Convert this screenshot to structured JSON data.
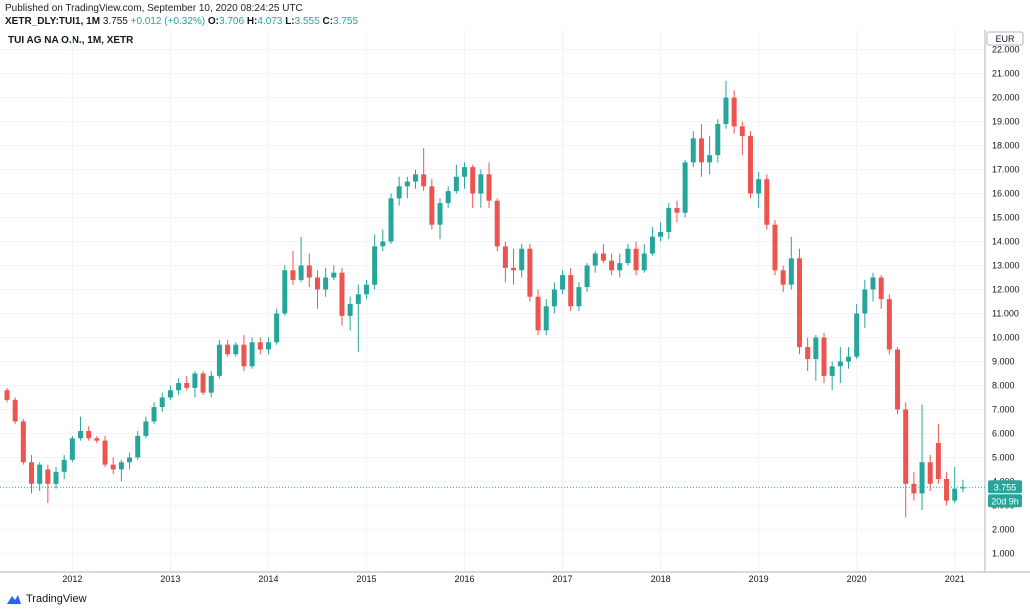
{
  "header": {
    "published": "Published on TradingView.com, September 10, 2020 08:24:25 UTC",
    "symbol_line": "XETR_DLY:TUI1, 1M",
    "last": "3.755",
    "change": "+0.012 (+0.32%)",
    "o_label": "O:",
    "o_val": "3.706",
    "h_label": "H:",
    "h_val": "4.073",
    "l_label": "L:",
    "l_val": "3.555",
    "c_label": "C:",
    "c_val": "3.755",
    "legend_title": "TUI AG NA O.N., 1M, XETR"
  },
  "footer": {
    "brand": "TradingView"
  },
  "colors": {
    "up": "#26a69a",
    "down": "#ef5350",
    "grid": "#f0f3fa",
    "axis": "#b2b5be"
  },
  "chart_data": {
    "type": "candlestick",
    "currency": "EUR",
    "y_ticks": [
      "1.000",
      "2.000",
      "3.000",
      "4.000",
      "5.000",
      "6.000",
      "7.000",
      "8.000",
      "9.000",
      "10.000",
      "11.000",
      "12.000",
      "13.000",
      "14.000",
      "15.000",
      "16.000",
      "17.000",
      "18.000",
      "19.000",
      "20.000",
      "21.000",
      "22.000"
    ],
    "ylim": [
      0.6,
      22.4
    ],
    "x_ticks": [
      "2012",
      "2013",
      "2014",
      "2015",
      "2016",
      "2017",
      "2018",
      "2019",
      "2020",
      "2021"
    ],
    "last_price_label": "3.755",
    "countdown_label": "20d 9h",
    "candles": [
      {
        "date": "2011-05",
        "o": 7.8,
        "h": 7.9,
        "l": 7.3,
        "c": 7.4
      },
      {
        "date": "2011-06",
        "o": 7.4,
        "h": 7.5,
        "l": 6.4,
        "c": 6.5
      },
      {
        "date": "2011-07",
        "o": 6.5,
        "h": 6.6,
        "l": 4.7,
        "c": 4.8
      },
      {
        "date": "2011-08",
        "o": 4.8,
        "h": 5.1,
        "l": 3.5,
        "c": 3.9
      },
      {
        "date": "2011-09",
        "o": 3.9,
        "h": 4.8,
        "l": 3.6,
        "c": 4.7
      },
      {
        "date": "2011-10",
        "o": 4.5,
        "h": 4.7,
        "l": 3.1,
        "c": 3.9
      },
      {
        "date": "2011-11",
        "o": 3.9,
        "h": 4.6,
        "l": 3.7,
        "c": 4.4
      },
      {
        "date": "2011-12",
        "o": 4.4,
        "h": 5.1,
        "l": 4.1,
        "c": 4.9
      },
      {
        "date": "2012-01",
        "o": 4.9,
        "h": 5.9,
        "l": 4.8,
        "c": 5.8
      },
      {
        "date": "2012-02",
        "o": 5.8,
        "h": 6.7,
        "l": 5.7,
        "c": 6.1
      },
      {
        "date": "2012-03",
        "o": 6.1,
        "h": 6.3,
        "l": 5.7,
        "c": 5.8
      },
      {
        "date": "2012-04",
        "o": 5.8,
        "h": 5.9,
        "l": 5.6,
        "c": 5.7
      },
      {
        "date": "2012-05",
        "o": 5.7,
        "h": 5.9,
        "l": 4.6,
        "c": 4.7
      },
      {
        "date": "2012-06",
        "o": 4.7,
        "h": 5.0,
        "l": 4.3,
        "c": 4.5
      },
      {
        "date": "2012-07",
        "o": 4.5,
        "h": 4.9,
        "l": 4.0,
        "c": 4.8
      },
      {
        "date": "2012-08",
        "o": 4.8,
        "h": 5.2,
        "l": 4.5,
        "c": 5.0
      },
      {
        "date": "2012-09",
        "o": 5.0,
        "h": 6.1,
        "l": 4.9,
        "c": 5.9
      },
      {
        "date": "2012-10",
        "o": 5.9,
        "h": 6.7,
        "l": 5.8,
        "c": 6.5
      },
      {
        "date": "2012-11",
        "o": 6.5,
        "h": 7.3,
        "l": 6.4,
        "c": 7.1
      },
      {
        "date": "2012-12",
        "o": 7.1,
        "h": 7.7,
        "l": 6.9,
        "c": 7.5
      },
      {
        "date": "2013-01",
        "o": 7.5,
        "h": 8.0,
        "l": 7.4,
        "c": 7.8
      },
      {
        "date": "2013-02",
        "o": 7.8,
        "h": 8.3,
        "l": 7.6,
        "c": 8.1
      },
      {
        "date": "2013-03",
        "o": 8.1,
        "h": 8.4,
        "l": 7.8,
        "c": 7.9
      },
      {
        "date": "2013-04",
        "o": 7.9,
        "h": 8.6,
        "l": 7.5,
        "c": 8.5
      },
      {
        "date": "2013-05",
        "o": 8.5,
        "h": 8.6,
        "l": 7.6,
        "c": 7.7
      },
      {
        "date": "2013-06",
        "o": 7.7,
        "h": 8.6,
        "l": 7.5,
        "c": 8.4
      },
      {
        "date": "2013-07",
        "o": 8.4,
        "h": 9.9,
        "l": 8.3,
        "c": 9.7
      },
      {
        "date": "2013-08",
        "o": 9.7,
        "h": 9.9,
        "l": 9.2,
        "c": 9.3
      },
      {
        "date": "2013-09",
        "o": 9.3,
        "h": 9.8,
        "l": 9.2,
        "c": 9.7
      },
      {
        "date": "2013-10",
        "o": 9.7,
        "h": 10.1,
        "l": 8.6,
        "c": 8.8
      },
      {
        "date": "2013-11",
        "o": 8.8,
        "h": 10.0,
        "l": 8.7,
        "c": 9.8
      },
      {
        "date": "2013-12",
        "o": 9.8,
        "h": 10.0,
        "l": 9.3,
        "c": 9.5
      },
      {
        "date": "2014-01",
        "o": 9.5,
        "h": 10.0,
        "l": 9.3,
        "c": 9.8
      },
      {
        "date": "2014-02",
        "o": 9.8,
        "h": 11.2,
        "l": 9.7,
        "c": 11.0
      },
      {
        "date": "2014-03",
        "o": 11.0,
        "h": 13.0,
        "l": 10.9,
        "c": 12.8
      },
      {
        "date": "2014-04",
        "o": 12.8,
        "h": 13.6,
        "l": 12.2,
        "c": 12.4
      },
      {
        "date": "2014-05",
        "o": 12.4,
        "h": 14.2,
        "l": 12.3,
        "c": 13.0
      },
      {
        "date": "2014-06",
        "o": 13.0,
        "h": 13.5,
        "l": 12.1,
        "c": 12.5
      },
      {
        "date": "2014-07",
        "o": 12.5,
        "h": 12.8,
        "l": 11.2,
        "c": 12.0
      },
      {
        "date": "2014-08",
        "o": 12.0,
        "h": 12.9,
        "l": 11.7,
        "c": 12.5
      },
      {
        "date": "2014-09",
        "o": 12.5,
        "h": 13.0,
        "l": 12.4,
        "c": 12.7
      },
      {
        "date": "2014-10",
        "o": 12.7,
        "h": 12.9,
        "l": 10.5,
        "c": 10.9
      },
      {
        "date": "2014-11",
        "o": 10.9,
        "h": 11.7,
        "l": 10.3,
        "c": 11.4
      },
      {
        "date": "2014-12",
        "o": 11.4,
        "h": 12.2,
        "l": 9.4,
        "c": 11.8
      },
      {
        "date": "2015-01",
        "o": 11.8,
        "h": 12.4,
        "l": 11.6,
        "c": 12.2
      },
      {
        "date": "2015-02",
        "o": 12.2,
        "h": 14.3,
        "l": 12.0,
        "c": 13.8
      },
      {
        "date": "2015-03",
        "o": 13.8,
        "h": 14.5,
        "l": 13.6,
        "c": 14.0
      },
      {
        "date": "2015-04",
        "o": 14.0,
        "h": 16.0,
        "l": 13.9,
        "c": 15.8
      },
      {
        "date": "2015-05",
        "o": 15.8,
        "h": 16.7,
        "l": 15.5,
        "c": 16.3
      },
      {
        "date": "2015-06",
        "o": 16.3,
        "h": 16.7,
        "l": 15.8,
        "c": 16.5
      },
      {
        "date": "2015-07",
        "o": 16.5,
        "h": 17.0,
        "l": 16.2,
        "c": 16.8
      },
      {
        "date": "2015-08",
        "o": 16.8,
        "h": 17.9,
        "l": 16.1,
        "c": 16.3
      },
      {
        "date": "2015-09",
        "o": 16.3,
        "h": 16.6,
        "l": 14.5,
        "c": 14.7
      },
      {
        "date": "2015-10",
        "o": 14.7,
        "h": 15.8,
        "l": 14.1,
        "c": 15.6
      },
      {
        "date": "2015-11",
        "o": 15.6,
        "h": 16.3,
        "l": 15.4,
        "c": 16.1
      },
      {
        "date": "2015-12",
        "o": 16.1,
        "h": 17.2,
        "l": 16.0,
        "c": 16.7
      },
      {
        "date": "2016-01",
        "o": 16.7,
        "h": 17.3,
        "l": 16.2,
        "c": 17.1
      },
      {
        "date": "2016-02",
        "o": 17.1,
        "h": 17.2,
        "l": 15.4,
        "c": 16.0
      },
      {
        "date": "2016-03",
        "o": 16.0,
        "h": 17.0,
        "l": 15.4,
        "c": 16.8
      },
      {
        "date": "2016-04",
        "o": 16.8,
        "h": 17.3,
        "l": 15.4,
        "c": 15.7
      },
      {
        "date": "2016-05",
        "o": 15.7,
        "h": 15.8,
        "l": 13.6,
        "c": 13.8
      },
      {
        "date": "2016-06",
        "o": 13.8,
        "h": 14.0,
        "l": 12.3,
        "c": 12.9
      },
      {
        "date": "2016-07",
        "o": 12.9,
        "h": 13.7,
        "l": 12.2,
        "c": 12.8
      },
      {
        "date": "2016-08",
        "o": 12.8,
        "h": 13.9,
        "l": 12.5,
        "c": 13.7
      },
      {
        "date": "2016-09",
        "o": 13.7,
        "h": 13.9,
        "l": 11.5,
        "c": 11.7
      },
      {
        "date": "2016-10",
        "o": 11.7,
        "h": 12.0,
        "l": 10.1,
        "c": 10.3
      },
      {
        "date": "2016-11",
        "o": 10.3,
        "h": 11.6,
        "l": 10.1,
        "c": 11.3
      },
      {
        "date": "2016-12",
        "o": 11.3,
        "h": 12.3,
        "l": 11.0,
        "c": 12.0
      },
      {
        "date": "2017-01",
        "o": 12.0,
        "h": 12.8,
        "l": 11.8,
        "c": 12.6
      },
      {
        "date": "2017-02",
        "o": 12.6,
        "h": 12.9,
        "l": 11.1,
        "c": 11.3
      },
      {
        "date": "2017-03",
        "o": 11.3,
        "h": 12.3,
        "l": 11.1,
        "c": 12.1
      },
      {
        "date": "2017-04",
        "o": 12.1,
        "h": 13.1,
        "l": 11.9,
        "c": 13.0
      },
      {
        "date": "2017-05",
        "o": 13.0,
        "h": 13.6,
        "l": 12.7,
        "c": 13.5
      },
      {
        "date": "2017-06",
        "o": 13.5,
        "h": 13.9,
        "l": 13.1,
        "c": 13.2
      },
      {
        "date": "2017-07",
        "o": 13.2,
        "h": 13.5,
        "l": 12.6,
        "c": 12.8
      },
      {
        "date": "2017-08",
        "o": 12.8,
        "h": 13.5,
        "l": 12.5,
        "c": 13.1
      },
      {
        "date": "2017-09",
        "o": 13.1,
        "h": 13.9,
        "l": 13.0,
        "c": 13.7
      },
      {
        "date": "2017-10",
        "o": 13.7,
        "h": 14.0,
        "l": 12.6,
        "c": 12.8
      },
      {
        "date": "2017-11",
        "o": 12.8,
        "h": 13.9,
        "l": 12.7,
        "c": 13.5
      },
      {
        "date": "2017-12",
        "o": 13.5,
        "h": 14.6,
        "l": 13.4,
        "c": 14.2
      },
      {
        "date": "2018-01",
        "o": 14.2,
        "h": 14.8,
        "l": 14.0,
        "c": 14.4
      },
      {
        "date": "2018-02",
        "o": 14.4,
        "h": 15.6,
        "l": 14.1,
        "c": 15.4
      },
      {
        "date": "2018-03",
        "o": 15.4,
        "h": 15.7,
        "l": 14.8,
        "c": 15.2
      },
      {
        "date": "2018-04",
        "o": 15.2,
        "h": 17.4,
        "l": 15.0,
        "c": 17.3
      },
      {
        "date": "2018-05",
        "o": 17.3,
        "h": 18.6,
        "l": 17.1,
        "c": 18.3
      },
      {
        "date": "2018-06",
        "o": 18.3,
        "h": 18.9,
        "l": 16.7,
        "c": 17.3
      },
      {
        "date": "2018-07",
        "o": 17.3,
        "h": 18.4,
        "l": 16.8,
        "c": 17.6
      },
      {
        "date": "2018-08",
        "o": 17.6,
        "h": 19.1,
        "l": 17.3,
        "c": 18.9
      },
      {
        "date": "2018-09",
        "o": 18.9,
        "h": 20.7,
        "l": 18.7,
        "c": 20.0
      },
      {
        "date": "2018-10",
        "o": 20.0,
        "h": 20.3,
        "l": 18.5,
        "c": 18.8
      },
      {
        "date": "2018-11",
        "o": 18.8,
        "h": 19.0,
        "l": 17.6,
        "c": 18.4
      },
      {
        "date": "2018-12",
        "o": 18.4,
        "h": 18.6,
        "l": 15.8,
        "c": 16.0
      },
      {
        "date": "2019-01",
        "o": 16.0,
        "h": 16.9,
        "l": 15.4,
        "c": 16.6
      },
      {
        "date": "2019-02",
        "o": 16.6,
        "h": 16.8,
        "l": 14.5,
        "c": 14.7
      },
      {
        "date": "2019-03",
        "o": 14.7,
        "h": 14.9,
        "l": 12.6,
        "c": 12.8
      },
      {
        "date": "2019-04",
        "o": 12.8,
        "h": 13.0,
        "l": 11.9,
        "c": 12.2
      },
      {
        "date": "2019-05",
        "o": 12.2,
        "h": 14.2,
        "l": 12.0,
        "c": 13.3
      },
      {
        "date": "2019-06",
        "o": 13.3,
        "h": 13.7,
        "l": 9.3,
        "c": 9.6
      },
      {
        "date": "2019-07",
        "o": 9.6,
        "h": 10.0,
        "l": 8.6,
        "c": 9.1
      },
      {
        "date": "2019-08",
        "o": 9.1,
        "h": 10.1,
        "l": 8.2,
        "c": 10.0
      },
      {
        "date": "2019-09",
        "o": 10.0,
        "h": 10.2,
        "l": 8.1,
        "c": 8.4
      },
      {
        "date": "2019-10",
        "o": 8.4,
        "h": 9.0,
        "l": 7.8,
        "c": 8.8
      },
      {
        "date": "2019-11",
        "o": 8.8,
        "h": 9.6,
        "l": 8.1,
        "c": 9.0
      },
      {
        "date": "2019-12",
        "o": 9.0,
        "h": 9.6,
        "l": 8.7,
        "c": 9.2
      },
      {
        "date": "2020-01",
        "o": 9.2,
        "h": 11.4,
        "l": 9.1,
        "c": 11.0
      },
      {
        "date": "2020-02",
        "o": 11.0,
        "h": 12.4,
        "l": 10.4,
        "c": 12.0
      },
      {
        "date": "2020-03",
        "o": 12.0,
        "h": 12.7,
        "l": 11.5,
        "c": 12.5
      },
      {
        "date": "2020-04",
        "o": 12.5,
        "h": 12.6,
        "l": 11.2,
        "c": 11.6
      },
      {
        "date": "2020-05",
        "o": 11.6,
        "h": 11.8,
        "l": 9.3,
        "c": 9.5
      },
      {
        "date": "2020-06",
        "o": 9.5,
        "h": 9.6,
        "l": 6.8,
        "c": 7.0
      },
      {
        "date": "2020-07",
        "o": 7.0,
        "h": 7.3,
        "l": 2.5,
        "c": 3.9
      },
      {
        "date": "2020-08",
        "o": 3.9,
        "h": 4.4,
        "l": 3.2,
        "c": 3.5
      },
      {
        "date": "2020-09",
        "o": 3.5,
        "h": 7.2,
        "l": 2.8,
        "c": 4.8
      },
      {
        "date": "2020-10",
        "o": 4.8,
        "h": 5.1,
        "l": 3.6,
        "c": 3.9
      },
      {
        "date": "2020-11",
        "o": 5.6,
        "h": 6.4,
        "l": 3.9,
        "c": 4.1
      },
      {
        "date": "2020-12",
        "o": 4.1,
        "h": 4.4,
        "l": 3.0,
        "c": 3.2
      },
      {
        "date": "2021-01",
        "o": 3.2,
        "h": 4.6,
        "l": 3.1,
        "c": 3.7
      },
      {
        "date": "2021-02",
        "o": 3.706,
        "h": 4.073,
        "l": 3.555,
        "c": 3.755
      }
    ]
  }
}
